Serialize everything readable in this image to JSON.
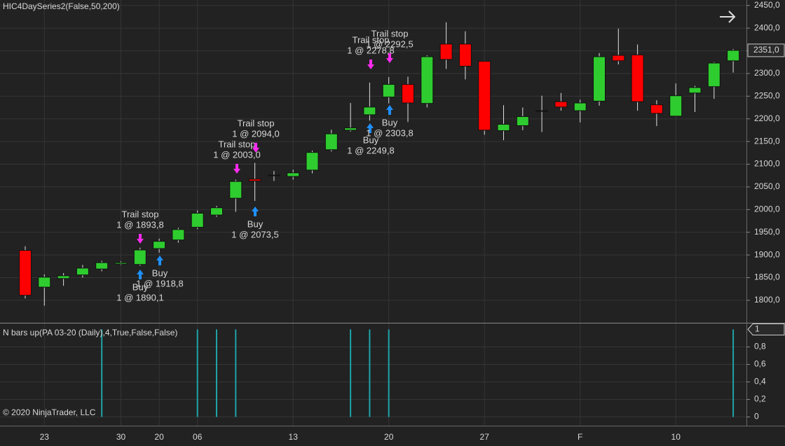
{
  "chart_data": [
    {
      "type": "candlestick",
      "title": "HIC4DaySeries2(False,50,200)",
      "categories": [
        null,
        "23",
        null,
        null,
        null,
        "30",
        null,
        "20",
        null,
        "06",
        null,
        null,
        null,
        null,
        "13",
        null,
        null,
        null,
        null,
        "20",
        null,
        null,
        null,
        null,
        "27",
        null,
        null,
        null,
        null,
        "F",
        null,
        null,
        null,
        null,
        "10",
        null,
        null,
        null
      ],
      "open": [
        1910,
        1829,
        1848,
        1856,
        1869,
        1880,
        1879,
        1914,
        1933,
        1961,
        1988,
        2025,
        2067,
        2076,
        2073,
        2087,
        2132,
        2175,
        2209,
        2248,
        2276,
        2234,
        2365,
        2365,
        2327,
        2174,
        2185,
        2218,
        2238,
        2218,
        2239,
        2340,
        2341,
        2231,
        2206,
        2257,
        2271,
        2328
      ],
      "high": [
        1919,
        1857,
        1860,
        1878,
        1887,
        1886,
        1916,
        1936,
        1960,
        1998,
        2008,
        2066,
        2103,
        2085,
        2088,
        2130,
        2176,
        2235,
        2280,
        2292,
        2293,
        2340,
        2413,
        2393,
        2328,
        2230,
        2225,
        2251,
        2257,
        2242,
        2345,
        2399,
        2364,
        2241,
        2278,
        2273,
        2325,
        2354
      ],
      "low": [
        1804,
        1788,
        1832,
        1850,
        1864,
        1878,
        1876,
        1905,
        1927,
        1957,
        1984,
        1995,
        2019,
        2063,
        2066,
        2080,
        2128,
        2172,
        2196,
        2234,
        2193,
        2225,
        2310,
        2287,
        2165,
        2153,
        2175,
        2171,
        2218,
        2192,
        2229,
        2320,
        2218,
        2184,
        2205,
        2215,
        2244,
        2302
      ],
      "close": [
        1811,
        1851,
        1854,
        1871,
        1883,
        1883,
        1911,
        1930,
        1956,
        1992,
        2004,
        2062,
        2063,
        2076,
        2081,
        2126,
        2167,
        2180,
        2226,
        2276,
        2235,
        2337,
        2331,
        2316,
        2175,
        2188,
        2205,
        2218,
        2226,
        2235,
        2337,
        2328,
        2238,
        2212,
        2251,
        2269,
        2323,
        2351
      ],
      "up_color": "#2ecc2e",
      "down_color": "#ff0000",
      "ylim": [
        1752,
        2462
      ],
      "yticks": [
        {
          "value": 1800,
          "label": "1800,0"
        },
        {
          "value": 1850,
          "label": "1850,0"
        },
        {
          "value": 1900,
          "label": "1900,0"
        },
        {
          "value": 1950,
          "label": "1950,0"
        },
        {
          "value": 2000,
          "label": "2000,0"
        },
        {
          "value": 2050,
          "label": "2050,0"
        },
        {
          "value": 2100,
          "label": "2100,0"
        },
        {
          "value": 2150,
          "label": "2150,0"
        },
        {
          "value": 2200,
          "label": "2200,0"
        },
        {
          "value": 2250,
          "label": "2250,0"
        },
        {
          "value": 2300,
          "label": "2300,0"
        },
        {
          "value": 2350,
          "label": "2350,0"
        },
        {
          "value": 2400,
          "label": "2400,0"
        },
        {
          "value": 2450,
          "label": "2450,0"
        }
      ],
      "last_value": {
        "value": 2351,
        "label": "2351,0"
      },
      "grid": true,
      "annotations": [
        {
          "lines": [
            "Trail stop",
            "1 @ 1893,8"
          ]
        },
        {
          "lines": [
            "Buy",
            "1 @ 1890,1"
          ]
        },
        {
          "lines": [
            "Buy",
            "1 @ 1918,8"
          ]
        },
        {
          "lines": [
            "Trail stop",
            "1 @ 2003,0"
          ]
        },
        {
          "lines": [
            "Trail stop",
            "1 @ 2094,0"
          ]
        },
        {
          "lines": [
            "Buy",
            "1 @ 2073,5"
          ]
        },
        {
          "lines": [
            "Trail stop",
            "1 @ 2278,8"
          ]
        },
        {
          "lines": [
            "Trail stop",
            "1 @ 2292,5"
          ]
        },
        {
          "lines": [
            "Buy",
            "1 @ 2249,8"
          ]
        },
        {
          "lines": [
            "Buy",
            "1 @ 2303,8"
          ]
        }
      ]
    },
    {
      "type": "bar",
      "title": "N bars up(PA 03-20 (Daily),4,True,False,False)",
      "values": [
        0,
        0,
        0,
        0,
        1,
        0,
        0,
        0,
        0,
        1,
        1,
        1,
        0,
        0,
        0,
        0,
        0,
        1,
        1,
        1,
        0,
        0,
        0,
        0,
        0,
        0,
        0,
        0,
        0,
        0,
        0,
        0,
        0,
        0,
        0,
        0,
        0,
        1
      ],
      "color": "#1fa3a8",
      "ylim": [
        -0.1,
        1.06
      ],
      "yticks": [
        0,
        {
          "value": 0.2,
          "label": "0,2"
        },
        {
          "value": 0.4,
          "label": "0,4"
        },
        {
          "value": 0.6,
          "label": "0,6"
        },
        {
          "value": 0.8,
          "label": "0,8"
        }
      ],
      "last_value": 1,
      "grid": true
    }
  ],
  "copyright": "© 2020 NinjaTrader, LLC"
}
